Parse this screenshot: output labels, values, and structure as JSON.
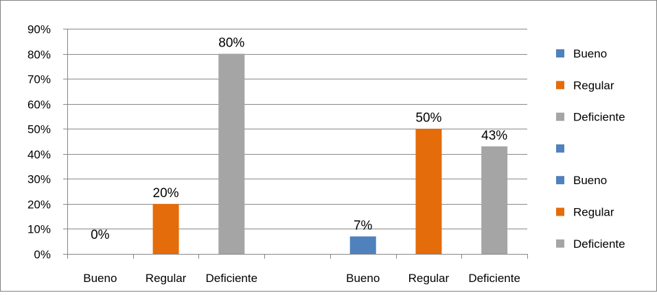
{
  "chart_data": {
    "type": "bar",
    "title": "",
    "xlabel": "",
    "ylabel": "",
    "ylim": [
      0,
      0.9
    ],
    "y_ticks": [
      "0%",
      "10%",
      "20%",
      "30%",
      "40%",
      "50%",
      "60%",
      "70%",
      "80%",
      "90%"
    ],
    "grid": true,
    "legend_position": "right",
    "categories": [
      "Bueno",
      "Regular",
      "Deficiente",
      "",
      "Bueno",
      "Regular",
      "Deficiente"
    ],
    "bars": [
      {
        "category": "Bueno",
        "value": 0.0,
        "label": "0%",
        "color": "#4F81BD"
      },
      {
        "category": "Regular",
        "value": 0.2,
        "label": "20%",
        "color": "#E46C0A"
      },
      {
        "category": "Deficiente",
        "value": 0.8,
        "label": "80%",
        "color": "#A5A5A5"
      },
      {
        "category": "",
        "value": null,
        "label": "",
        "color": "#4F81BD"
      },
      {
        "category": "Bueno",
        "value": 0.07,
        "label": "7%",
        "color": "#4F81BD"
      },
      {
        "category": "Regular",
        "value": 0.5,
        "label": "50%",
        "color": "#E46C0A"
      },
      {
        "category": "Deficiente",
        "value": 0.43,
        "label": "43%",
        "color": "#A5A5A5"
      }
    ],
    "legend": [
      {
        "name": "Bueno",
        "color": "#4F81BD"
      },
      {
        "name": "Regular",
        "color": "#E46C0A"
      },
      {
        "name": "Deficiente",
        "color": "#A5A5A5"
      },
      {
        "name": "",
        "color": "#4F81BD"
      },
      {
        "name": "Bueno",
        "color": "#4F81BD"
      },
      {
        "name": "Regular",
        "color": "#E46C0A"
      },
      {
        "name": "Deficiente",
        "color": "#A5A5A5"
      }
    ]
  }
}
